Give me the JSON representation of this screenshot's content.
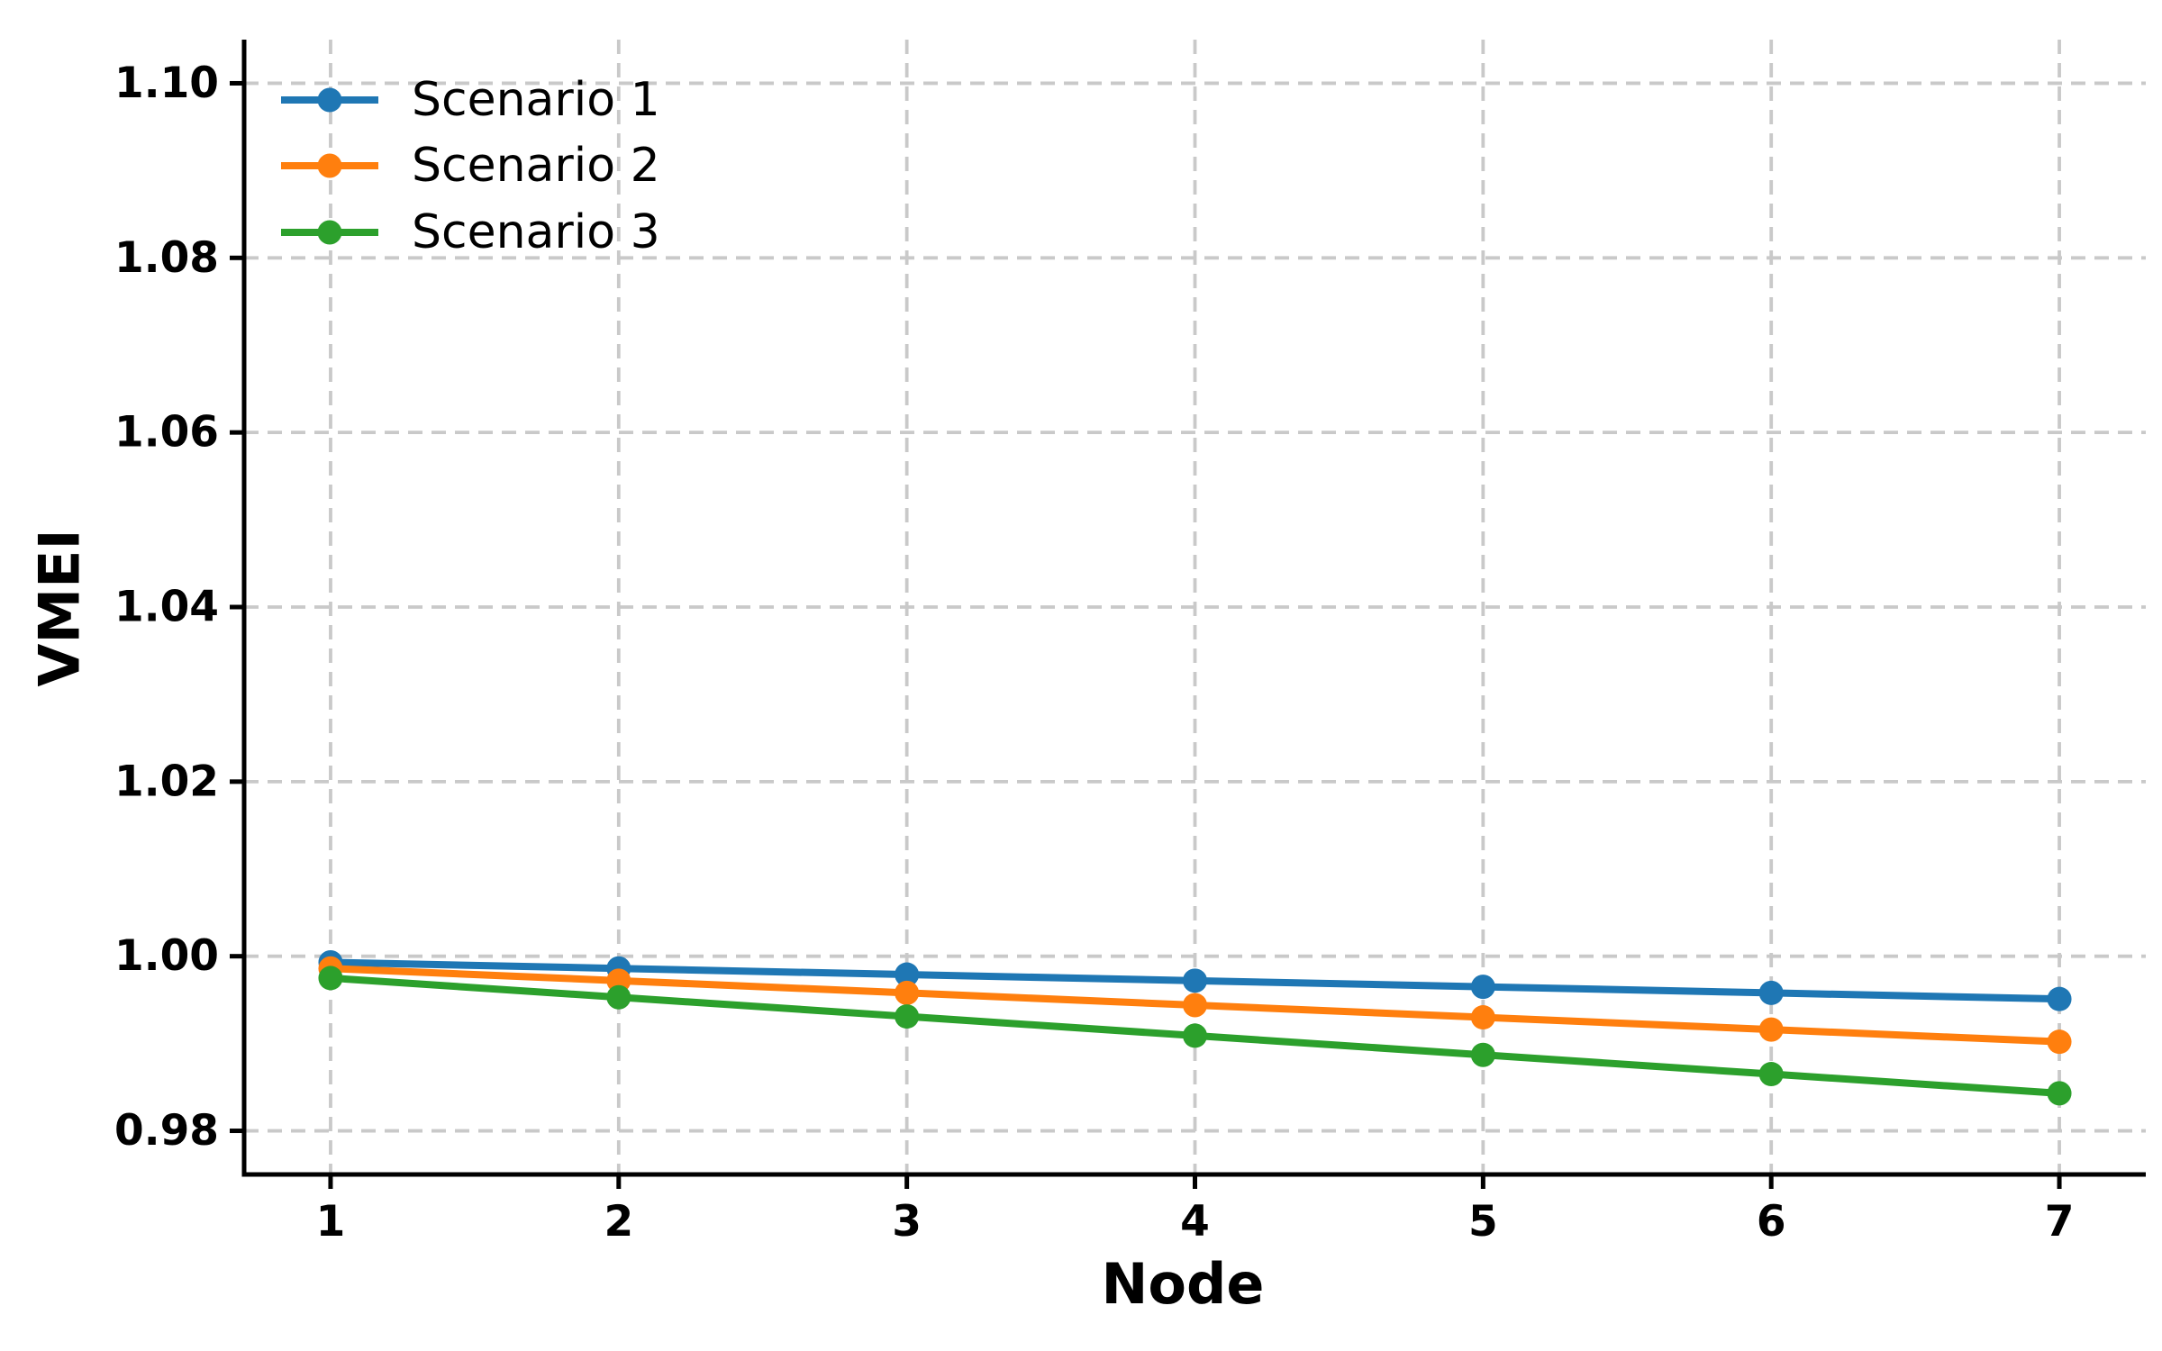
{
  "figure": {
    "background_color": "#ffffff",
    "text_color": "#000000"
  },
  "chart_data": {
    "type": "line",
    "title": "",
    "xlabel": "Node",
    "ylabel": "VMEI",
    "x": [
      1,
      2,
      3,
      4,
      5,
      6,
      7
    ],
    "series": [
      {
        "name": "Scenario 1",
        "color": "#1f77b4",
        "values": [
          0.9993,
          0.9986,
          0.9979,
          0.9972,
          0.9965,
          0.9958,
          0.9951
        ]
      },
      {
        "name": "Scenario 2",
        "color": "#ff7f0e",
        "values": [
          0.9986,
          0.9972,
          0.9958,
          0.9944,
          0.993,
          0.9916,
          0.9902
        ]
      },
      {
        "name": "Scenario 3",
        "color": "#2ca02c",
        "values": [
          0.9975,
          0.9953,
          0.9931,
          0.9909,
          0.9887,
          0.9865,
          0.9843
        ]
      }
    ],
    "xlim": [
      0.7,
      7.3
    ],
    "ylim": [
      0.975,
      1.105
    ],
    "xticks": [
      1,
      2,
      3,
      4,
      5,
      6,
      7
    ],
    "xtick_labels": [
      "1",
      "2",
      "3",
      "4",
      "5",
      "6",
      "7"
    ],
    "yticks": [
      0.98,
      1.0,
      1.02,
      1.04,
      1.06,
      1.08,
      1.1
    ],
    "ytick_labels": [
      "0.98",
      "1.00",
      "1.02",
      "1.04",
      "1.06",
      "1.08",
      "1.10"
    ],
    "grid": true,
    "grid_style": "dashed",
    "grid_color": "#c9c9c9",
    "axis_color": "#000000",
    "legend_position": "upper left",
    "legend_frame": false,
    "marker": "circle",
    "line_width": 8,
    "marker_radius": 13.5
  }
}
